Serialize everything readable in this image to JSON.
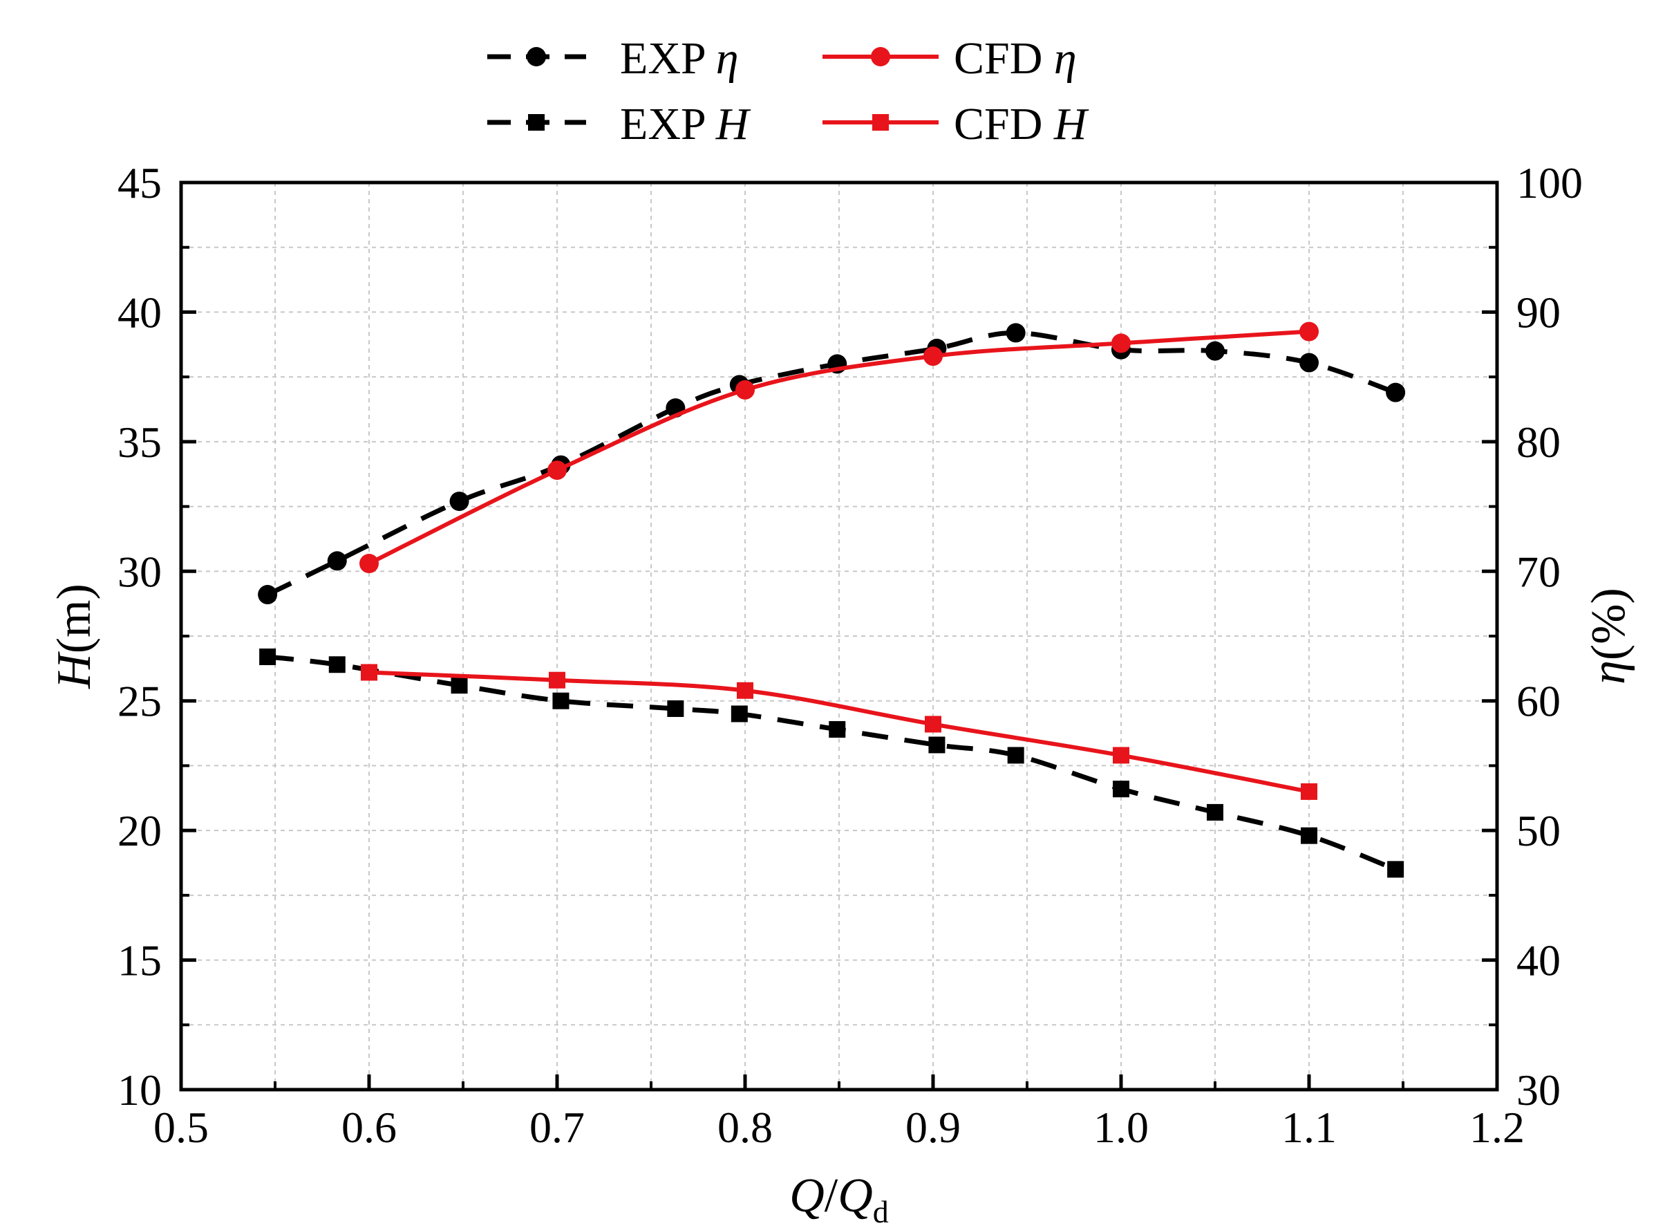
{
  "chart_data": {
    "type": "line",
    "title": "",
    "xlabel": {
      "main": "Q",
      "slash": "/",
      "base": "Q",
      "subscript": "d"
    },
    "ylabel_left": {
      "symbol": "H",
      "unit": "(m)"
    },
    "ylabel_right": {
      "symbol": "η",
      "unit": "(%)"
    },
    "xlim": [
      0.5,
      1.2
    ],
    "ylim_left": [
      10,
      45
    ],
    "ylim_right": [
      30,
      100
    ],
    "xticks": [
      "0.5",
      "0.6",
      "0.7",
      "0.8",
      "0.9",
      "1.0",
      "1.1",
      "1.2"
    ],
    "yticks_left": [
      "10",
      "15",
      "20",
      "25",
      "30",
      "35",
      "40",
      "45"
    ],
    "yticks_right": [
      "30",
      "40",
      "50",
      "60",
      "70",
      "80",
      "90",
      "100"
    ],
    "grid": true,
    "legend_position": "top-center",
    "legend": [
      {
        "key": "exp_eta",
        "prefix": "EXP",
        "symbol": "η"
      },
      {
        "key": "cfd_eta",
        "prefix": "CFD",
        "symbol": "η"
      },
      {
        "key": "exp_h",
        "prefix": "EXP",
        "symbol": "H"
      },
      {
        "key": "cfd_h",
        "prefix": "CFD",
        "symbol": "H"
      }
    ],
    "series": [
      {
        "key": "exp_eta",
        "name": "EXP η",
        "axis": "right",
        "marker": "circle",
        "color": "#000000",
        "dashed": true,
        "x": [
          0.546,
          0.583,
          0.648,
          0.702,
          0.763,
          0.797,
          0.849,
          0.902,
          0.944,
          1.0,
          1.05,
          1.1,
          1.146
        ],
        "y": [
          68.2,
          70.8,
          75.4,
          78.2,
          82.6,
          84.4,
          86.0,
          87.2,
          88.4,
          87.1,
          87.0,
          86.1,
          83.8
        ]
      },
      {
        "key": "cfd_eta",
        "name": "CFD η",
        "axis": "right",
        "marker": "circle",
        "color": "#e8141b",
        "dashed": false,
        "x": [
          0.6,
          0.7,
          0.8,
          0.9,
          1.0,
          1.1
        ],
        "y": [
          70.6,
          77.8,
          84.0,
          86.6,
          87.6,
          88.5
        ]
      },
      {
        "key": "exp_h",
        "name": "EXP H",
        "axis": "left",
        "marker": "square",
        "color": "#000000",
        "dashed": true,
        "x": [
          0.546,
          0.583,
          0.648,
          0.702,
          0.763,
          0.797,
          0.849,
          0.902,
          0.944,
          1.0,
          1.05,
          1.1,
          1.146
        ],
        "y": [
          26.7,
          26.4,
          25.6,
          25.0,
          24.7,
          24.5,
          23.9,
          23.3,
          22.9,
          21.6,
          20.7,
          19.8,
          18.5
        ]
      },
      {
        "key": "cfd_h",
        "name": "CFD H",
        "axis": "left",
        "marker": "square",
        "color": "#e8141b",
        "dashed": false,
        "x": [
          0.6,
          0.7,
          0.8,
          0.9,
          1.0,
          1.1
        ],
        "y": [
          26.1,
          25.8,
          25.4,
          24.1,
          22.9,
          21.5
        ]
      }
    ]
  }
}
